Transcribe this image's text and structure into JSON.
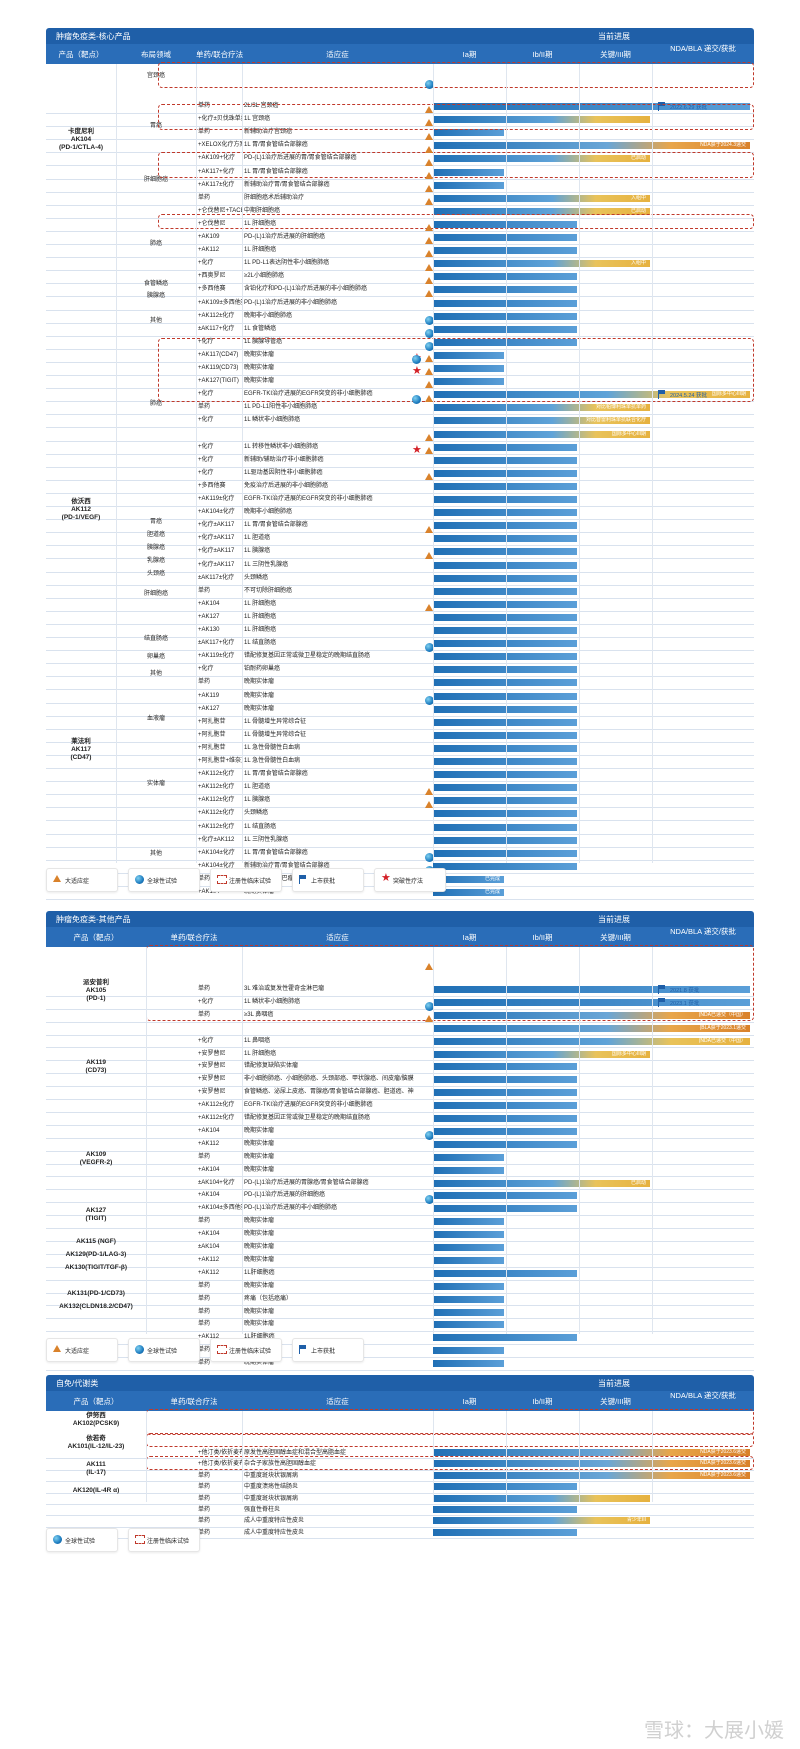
{
  "section1": {
    "title": "肿瘤免疫类-核心产品",
    "progress_title": "当前进展",
    "headers": {
      "product": "产品（靶点）",
      "area": "布局领域",
      "therapy": "单药/联合疗法",
      "indication": "适应症",
      "p1": "Ia期",
      "p2": "Ib/II期",
      "p3": "关键/III期",
      "nda": "NDA/BLA 递交/获批"
    },
    "products": [
      {
        "name": "卡度尼利\nAK104\n(PD-1/CTLA-4)"
      },
      {
        "name": "依沃西\nAK112\n(PD-1/VEGF)"
      },
      {
        "name": "莱法利\nAK117\n(CD47)"
      }
    ],
    "areas": [
      "宫颈癌",
      "胃癌",
      "肝细胞癌",
      "肺癌",
      "食管鳞癌",
      "胰腺癌",
      "其他",
      "肺癌",
      "胃癌",
      "胆道癌",
      "胰腺癌",
      "乳腺癌",
      "头颈癌",
      "肝细胞癌",
      "结直肠癌",
      "卵巢癌",
      "其他",
      "血液瘤",
      "实体瘤",
      "其他"
    ],
    "rows": [
      {
        "therapy": "单药",
        "ind": "2L/3L 宫颈癌",
        "stage": 4,
        "style": "blue",
        "label": "",
        "nda": "2022.6.29 获批"
      },
      {
        "therapy": "+化疗±贝伐珠单抗",
        "ind": "1L 宫颈癌",
        "stage": 3,
        "style": "gold",
        "label": "",
        "nda": ""
      },
      {
        "therapy": "单药",
        "ind": "新辅助治疗宫颈癌",
        "stage": 1,
        "style": "blue",
        "label": "",
        "nda": ""
      },
      {
        "therapy": "+XELOX化疗方案",
        "ind": "1L 胃/胃食管结合部腺癌",
        "stage": 4,
        "style": "orange",
        "label": "NDA获于2024.3递交",
        "nda": ""
      },
      {
        "therapy": "+AK109+化疗",
        "ind": "PD-(L)1治疗后进展的胃/胃食管结合部腺癌",
        "stage": 3,
        "style": "gold",
        "label": "已启动",
        "nda": ""
      },
      {
        "therapy": "+AK117+化疗",
        "ind": "1L 胃/胃食管结合部腺癌",
        "stage": 1,
        "style": "blue",
        "label": "",
        "nda": ""
      },
      {
        "therapy": "+AK117±化疗",
        "ind": "新辅助治疗胃/胃食管结合部腺癌",
        "stage": 1,
        "style": "blue",
        "label": "",
        "nda": ""
      },
      {
        "therapy": "单药",
        "ind": "肝细胞癌术后辅助治疗",
        "stage": 3,
        "style": "gold",
        "label": "入组中",
        "nda": ""
      },
      {
        "therapy": "+仑伐替尼+TACE",
        "ind": "中期肝细胞癌",
        "stage": 3,
        "style": "gold",
        "label": "已启动",
        "nda": ""
      },
      {
        "therapy": "+仑伐替尼",
        "ind": "1L 肝细胞癌",
        "stage": 2,
        "style": "blue",
        "label": "",
        "nda": ""
      },
      {
        "therapy": "+AK109",
        "ind": "PD-(L)1治疗后进展的肝细胞癌",
        "stage": 2,
        "style": "blue",
        "label": "",
        "nda": ""
      },
      {
        "therapy": "+AK112",
        "ind": "1L 肝细胞癌",
        "stage": 2,
        "style": "blue",
        "label": "",
        "nda": ""
      },
      {
        "therapy": "+化疗",
        "ind": "1L PD-L1表达阴性非小细胞肺癌",
        "stage": 3,
        "style": "gold",
        "label": "入组中",
        "nda": ""
      },
      {
        "therapy": "+西奥罗尼",
        "ind": "≥2L小细胞肺癌",
        "stage": 2,
        "style": "blue",
        "label": "",
        "nda": ""
      },
      {
        "therapy": "+多西他赛",
        "ind": "含铂化疗和PD-(L)1治疗后进展的非小细胞肺癌",
        "stage": 2,
        "style": "blue",
        "label": "",
        "nda": ""
      },
      {
        "therapy": "+AK109±多西他赛",
        "ind": "PD-(L)1治疗后进展的非小细胞肺癌",
        "stage": 2,
        "style": "blue",
        "label": "",
        "nda": ""
      },
      {
        "therapy": "+AK112±化疗",
        "ind": "晚期非小细胞肺癌",
        "stage": 2,
        "style": "blue",
        "label": "",
        "nda": ""
      },
      {
        "therapy": "±AK117+化疗",
        "ind": "1L 食管鳞癌",
        "stage": 2,
        "style": "blue",
        "label": "",
        "nda": ""
      },
      {
        "therapy": "+化疗",
        "ind": "1L 胰腺导管癌",
        "stage": 2,
        "style": "blue",
        "label": "",
        "nda": ""
      },
      {
        "therapy": "+AK117(CD47)",
        "ind": "晚期实体瘤",
        "stage": 1,
        "style": "blue",
        "label": "",
        "nda": ""
      },
      {
        "therapy": "+AK119(CD73)",
        "ind": "晚期实体瘤",
        "stage": 1,
        "style": "blue",
        "label": "",
        "nda": ""
      },
      {
        "therapy": "+AK127(TIGIT)",
        "ind": "晚期实体瘤",
        "stage": 1,
        "style": "blue",
        "label": "",
        "nda": ""
      },
      {
        "therapy": "+化疗",
        "ind": "EGFR-TKI治疗进展的EGFR突变的非小细胞肺癌",
        "stage": 4,
        "style": "gold",
        "label": "国际多中心III期",
        "nda": "2024.5.24 获批"
      },
      {
        "therapy": "单药",
        "ind": "1L PD-L1阳性非小细胞肺癌",
        "stage": 3,
        "style": "gold",
        "label": "对比帕博利珠单抗单药",
        "nda": ""
      },
      {
        "therapy": "+化疗",
        "ind": "1L 鳞状非小细胞肺癌",
        "stage": 3,
        "style": "gold",
        "label": "对比替雷利珠单抗联合化疗",
        "nda": ""
      },
      {
        "therapy": "",
        "ind": "",
        "stage": 3,
        "style": "gold",
        "label": "国际多中心III期",
        "nda": ""
      },
      {
        "therapy": "+化疗",
        "ind": "1L 转移性鳞状非小细胞肺癌",
        "stage": 2,
        "style": "blue",
        "label": "",
        "nda": ""
      },
      {
        "therapy": "+化疗",
        "ind": "新辅助/辅助治疗非小细胞肺癌",
        "stage": 2,
        "style": "blue",
        "label": "",
        "nda": ""
      },
      {
        "therapy": "+化疗",
        "ind": "1L驱动基因阴性非小细胞肺癌",
        "stage": 2,
        "style": "blue",
        "label": "",
        "nda": ""
      },
      {
        "therapy": "+多西他赛",
        "ind": "免疫治疗后进展的非小细胞肺癌",
        "stage": 2,
        "style": "blue",
        "label": "",
        "nda": ""
      },
      {
        "therapy": "+AK119±化疗",
        "ind": "EGFR-TKI治疗进展的EGFR突变的非小细胞肺癌",
        "stage": 2,
        "style": "blue",
        "label": "",
        "nda": ""
      },
      {
        "therapy": "+AK104±化疗",
        "ind": "晚期非小细胞肺癌",
        "stage": 2,
        "style": "blue",
        "label": "",
        "nda": ""
      },
      {
        "therapy": "+化疗±AK117",
        "ind": "1L 胃/胃食管结合部腺癌",
        "stage": 2,
        "style": "blue",
        "label": "",
        "nda": ""
      },
      {
        "therapy": "+化疗±AK117",
        "ind": "1L 胆道癌",
        "stage": 2,
        "style": "blue",
        "label": "",
        "nda": ""
      },
      {
        "therapy": "+化疗±AK117",
        "ind": "1L 胰腺癌",
        "stage": 2,
        "style": "blue",
        "label": "",
        "nda": ""
      },
      {
        "therapy": "+化疗±AK117",
        "ind": "1L 三阴性乳腺癌",
        "stage": 2,
        "style": "blue",
        "label": "",
        "nda": ""
      },
      {
        "therapy": "±AK117±化疗",
        "ind": "头颈鳞癌",
        "stage": 2,
        "style": "blue",
        "label": "",
        "nda": ""
      },
      {
        "therapy": "单药",
        "ind": "不可切除肝细胞癌",
        "stage": 2,
        "style": "blue",
        "label": "",
        "nda": ""
      },
      {
        "therapy": "+AK104",
        "ind": "1L 肝细胞癌",
        "stage": 2,
        "style": "blue",
        "label": "",
        "nda": ""
      },
      {
        "therapy": "+AK127",
        "ind": "1L 肝细胞癌",
        "stage": 2,
        "style": "blue",
        "label": "",
        "nda": ""
      },
      {
        "therapy": "+AK130",
        "ind": "1L 肝细胞癌",
        "stage": 2,
        "style": "blue",
        "label": "",
        "nda": ""
      },
      {
        "therapy": "±AK117+化疗",
        "ind": "1L 结直肠癌",
        "stage": 2,
        "style": "blue",
        "label": "",
        "nda": ""
      },
      {
        "therapy": "+AK119±化疗",
        "ind": "错配修复基因正常或微卫星稳定的晚期结直肠癌",
        "stage": 2,
        "style": "blue",
        "label": "",
        "nda": ""
      },
      {
        "therapy": "+化疗",
        "ind": "铂耐药卵巢癌",
        "stage": 2,
        "style": "blue",
        "label": "",
        "nda": ""
      },
      {
        "therapy": "单药",
        "ind": "晚期实体瘤",
        "stage": 2,
        "style": "blue",
        "label": "",
        "nda": ""
      },
      {
        "therapy": "+AK119",
        "ind": "晚期实体瘤",
        "stage": 2,
        "style": "blue",
        "label": "",
        "nda": ""
      },
      {
        "therapy": "+AK127",
        "ind": "晚期实体瘤",
        "stage": 2,
        "style": "blue",
        "label": "",
        "nda": ""
      },
      {
        "therapy": "+阿扎胞苷",
        "ind": "1L 骨髓增生异常综合征",
        "stage": 2,
        "style": "blue",
        "label": "",
        "nda": ""
      },
      {
        "therapy": "+阿扎胞苷",
        "ind": "1L 骨髓增生异常综合征",
        "stage": 2,
        "style": "blue",
        "label": "",
        "nda": ""
      },
      {
        "therapy": "+阿扎胞苷",
        "ind": "1L 急性骨髓性白血病",
        "stage": 2,
        "style": "blue",
        "label": "",
        "nda": ""
      },
      {
        "therapy": "+阿扎胞苷+维奈克拉",
        "ind": "1L 急性骨髓性白血病",
        "stage": 2,
        "style": "blue",
        "label": "",
        "nda": ""
      },
      {
        "therapy": "+AK112±化疗",
        "ind": "1L 胃/胃食管结合部腺癌",
        "stage": 2,
        "style": "blue",
        "label": "",
        "nda": ""
      },
      {
        "therapy": "+AK112±化疗",
        "ind": "1L 胆道癌",
        "stage": 2,
        "style": "blue",
        "label": "",
        "nda": ""
      },
      {
        "therapy": "+AK112±化疗",
        "ind": "1L 胰腺癌",
        "stage": 2,
        "style": "blue",
        "label": "",
        "nda": ""
      },
      {
        "therapy": "+AK112±化疗",
        "ind": "头颈鳞癌",
        "stage": 2,
        "style": "blue",
        "label": "",
        "nda": ""
      },
      {
        "therapy": "+AK112±化疗",
        "ind": "1L 结直肠癌",
        "stage": 2,
        "style": "blue",
        "label": "",
        "nda": ""
      },
      {
        "therapy": "+化疗±AK112",
        "ind": "1L 三阴性乳腺癌",
        "stage": 2,
        "style": "blue",
        "label": "",
        "nda": ""
      },
      {
        "therapy": "+AK104±化疗",
        "ind": "1L 胃/胃食管结合部腺癌",
        "stage": 2,
        "style": "blue",
        "label": "",
        "nda": ""
      },
      {
        "therapy": "+AK104±化疗",
        "ind": "新辅助治疗胃/胃食管结合部腺癌",
        "stage": 2,
        "style": "blue",
        "label": "",
        "nda": ""
      },
      {
        "therapy": "单药",
        "ind": "晚期实体瘤/淋巴瘤",
        "stage": 1,
        "style": "blue",
        "label": "已完成",
        "nda": ""
      },
      {
        "therapy": "+AK104",
        "ind": "晚期实体瘤",
        "stage": 1,
        "style": "blue",
        "label": "已完成",
        "nda": ""
      }
    ]
  },
  "legend1": [
    "大适应症",
    "全球性试验",
    "注册性临床试验",
    "上市获批",
    "突破性疗法"
  ],
  "section2": {
    "title": "肿瘤免疫类-其他产品",
    "progress_title": "当前进展",
    "headers": {
      "product": "产品（靶点）",
      "therapy": "单药/联合疗法",
      "indication": "适应症",
      "p1": "Ia期",
      "p2": "Ib/II期",
      "p3": "关键/III期",
      "nda": "NDA/BLA 递交/获批"
    },
    "products": [
      {
        "name": "派安普利\nAK105\n(PD-1)"
      },
      {
        "name": "AK119\n(CD73)"
      },
      {
        "name": "AK109\n(VEGFR-2)"
      },
      {
        "name": "AK127\n(TIGIT)"
      },
      {
        "name": "AK115 (NGF)"
      },
      {
        "name": "AK129(PD-1/LAG-3)"
      },
      {
        "name": "AK130(TIGIT/TGF-β)"
      },
      {
        "name": "AK131(PD-1/CD73)"
      },
      {
        "name": "AK132(CLDN18.2/CD47)"
      }
    ],
    "rows": [
      {
        "therapy": "单药",
        "ind": "3L 难治或复发性霍奇金淋巴瘤",
        "stage": 4,
        "style": "blue",
        "label": "",
        "nda": "2021.8 获批"
      },
      {
        "therapy": "+化疗",
        "ind": "1L 鳞状非小细胞肺癌",
        "stage": 4,
        "style": "blue",
        "label": "",
        "nda": "2023.1 获批"
      },
      {
        "therapy": "单药",
        "ind": "≥3L 鼻咽癌",
        "stage": 4,
        "style": "orange",
        "label": "(NDA已递交（中国）",
        "nda": ""
      },
      {
        "therapy": "",
        "ind": "",
        "stage": 4,
        "style": "orange",
        "label": "(BLA获于2023.1递交",
        "nda": ""
      },
      {
        "therapy": "+化疗",
        "ind": "1L 鼻咽癌",
        "stage": 4,
        "style": "gold",
        "label": "(NDA已递交（中国）",
        "nda": ""
      },
      {
        "therapy": "+安罗替尼",
        "ind": "1L 肝细胞癌",
        "stage": 3,
        "style": "gold",
        "label": "国际多中心III期",
        "nda": ""
      },
      {
        "therapy": "+安罗替尼",
        "ind": "错配修复缺陷实体瘤",
        "stage": 2,
        "style": "blue",
        "label": "",
        "nda": ""
      },
      {
        "therapy": "+安罗替尼",
        "ind": "非小细胞肺癌、小细胞肺癌、头颈部癌、甲状腺癌、间皮瘤/脑膜瘤",
        "stage": 2,
        "style": "blue",
        "label": "",
        "nda": ""
      },
      {
        "therapy": "+安罗替尼",
        "ind": "食管鳞癌、泌尿上皮癌、胃腺癌/胃食管结合部腺癌、胆道癌、神经内分泌肿瘤",
        "stage": 2,
        "style": "blue",
        "label": "",
        "nda": ""
      },
      {
        "therapy": "+AK112±化疗",
        "ind": "EGFR-TKI治疗进展的EGFR突变的非小细胞肺癌",
        "stage": 2,
        "style": "blue",
        "label": "",
        "nda": ""
      },
      {
        "therapy": "+AK112±化疗",
        "ind": "错配修复基因正常或微卫星稳定的晚期结直肠癌",
        "stage": 2,
        "style": "blue",
        "label": "",
        "nda": ""
      },
      {
        "therapy": "+AK104",
        "ind": "晚期实体瘤",
        "stage": 2,
        "style": "blue",
        "label": "",
        "nda": ""
      },
      {
        "therapy": "+AK112",
        "ind": "晚期实体瘤",
        "stage": 2,
        "style": "blue",
        "label": "",
        "nda": ""
      },
      {
        "therapy": "单药",
        "ind": "晚期实体瘤",
        "stage": 1,
        "style": "blue",
        "label": "",
        "nda": ""
      },
      {
        "therapy": "+AK104",
        "ind": "晚期实体瘤",
        "stage": 1,
        "style": "blue",
        "label": "",
        "nda": ""
      },
      {
        "therapy": "±AK104+化疗",
        "ind": "PD-(L)1治疗后进展的胃腺癌/胃食管结合部腺癌",
        "stage": 3,
        "style": "gold",
        "label": "已启动",
        "nda": ""
      },
      {
        "therapy": "+AK104",
        "ind": "PD-(L)1治疗后进展的肝细胞癌",
        "stage": 2,
        "style": "blue",
        "label": "",
        "nda": ""
      },
      {
        "therapy": "+AK104±多西他赛",
        "ind": "PD-(L)1治疗后进展的非小细胞肺癌",
        "stage": 2,
        "style": "blue",
        "label": "",
        "nda": ""
      },
      {
        "therapy": "单药",
        "ind": "晚期实体瘤",
        "stage": 1,
        "style": "blue",
        "label": "",
        "nda": ""
      },
      {
        "therapy": "+AK104",
        "ind": "晚期实体瘤",
        "stage": 1,
        "style": "blue",
        "label": "",
        "nda": ""
      },
      {
        "therapy": "±AK104",
        "ind": "晚期实体瘤",
        "stage": 1,
        "style": "blue",
        "label": "",
        "nda": ""
      },
      {
        "therapy": "+AK112",
        "ind": "晚期实体瘤",
        "stage": 1,
        "style": "blue",
        "label": "",
        "nda": ""
      },
      {
        "therapy": "+AK112",
        "ind": "1L肝细胞癌",
        "stage": 2,
        "style": "blue",
        "label": "",
        "nda": ""
      },
      {
        "therapy": "单药",
        "ind": "晚期实体瘤",
        "stage": 1,
        "style": "blue",
        "label": "",
        "nda": ""
      },
      {
        "therapy": "单药",
        "ind": "疼痛（包括癌痛）",
        "stage": 1,
        "style": "blue",
        "label": "",
        "nda": ""
      },
      {
        "therapy": "单药",
        "ind": "晚期实体瘤",
        "stage": 1,
        "style": "blue",
        "label": "",
        "nda": ""
      },
      {
        "therapy": "单药",
        "ind": "晚期实体瘤",
        "stage": 1,
        "style": "blue",
        "label": "",
        "nda": ""
      },
      {
        "therapy": "+AK112",
        "ind": "1L肝细胞癌",
        "stage": 2,
        "style": "blue",
        "label": "",
        "nda": ""
      },
      {
        "therapy": "单药",
        "ind": "晚期实体瘤",
        "stage": 1,
        "style": "blue",
        "label": "",
        "nda": ""
      },
      {
        "therapy": "单药",
        "ind": "晚期实体瘤",
        "stage": 1,
        "style": "blue",
        "label": "",
        "nda": ""
      }
    ]
  },
  "legend2": [
    "大适应症",
    "全球性试验",
    "注册性临床试验",
    "上市获批"
  ],
  "section3": {
    "title": "自免/代谢类",
    "progress_title": "当前进展",
    "headers": {
      "product": "产品（靶点）",
      "therapy": "单药/联合疗法",
      "indication": "适应症",
      "p1": "Ia期",
      "p2": "Ib/II期",
      "p3": "关键/III期",
      "nda": "NDA/BLA 递交/获批"
    },
    "products": [
      {
        "name": "伊努西\nAK102(PCSK9)"
      },
      {
        "name": "依若奇\nAK101(IL-12/IL-23)"
      },
      {
        "name": "AK111\n(IL-17)"
      },
      {
        "name": "AK120(IL-4R α)"
      }
    ],
    "rows": [
      {
        "therapy": "+他汀类/依折麦布",
        "ind": "原发性高胆固醇血症和混合型高脂血症",
        "stage": 4,
        "style": "orange",
        "label": "NDA获于2023.6递交",
        "nda": ""
      },
      {
        "therapy": "+他汀类/依折麦布",
        "ind": "杂合子家族性高胆固醇血症",
        "stage": 4,
        "style": "orange",
        "label": "NDA获于2023.6递交",
        "nda": ""
      },
      {
        "therapy": "单药",
        "ind": "中重度斑块状银屑病",
        "stage": 4,
        "style": "orange",
        "label": "NDA获于2023.6递交",
        "nda": ""
      },
      {
        "therapy": "单药",
        "ind": "中重度溃疡性结肠炎",
        "stage": 2,
        "style": "blue",
        "label": "",
        "nda": ""
      },
      {
        "therapy": "单药",
        "ind": "中重度斑块状银屑病",
        "stage": 3,
        "style": "gold",
        "label": "",
        "nda": ""
      },
      {
        "therapy": "单药",
        "ind": "强直性脊柱炎",
        "stage": 2,
        "style": "blue",
        "label": "",
        "nda": ""
      },
      {
        "therapy": "单药",
        "ind": "成人中重度特应性皮炎",
        "stage": 3,
        "style": "gold",
        "label": "青少年III",
        "nda": ""
      },
      {
        "therapy": "单药",
        "ind": "成人中重度特应性皮炎",
        "stage": 2,
        "style": "blue",
        "label": "",
        "nda": ""
      }
    ]
  },
  "legend3": [
    "全球性试验",
    "注册性临床试验"
  ],
  "watermark": "雪球：大展小媛"
}
